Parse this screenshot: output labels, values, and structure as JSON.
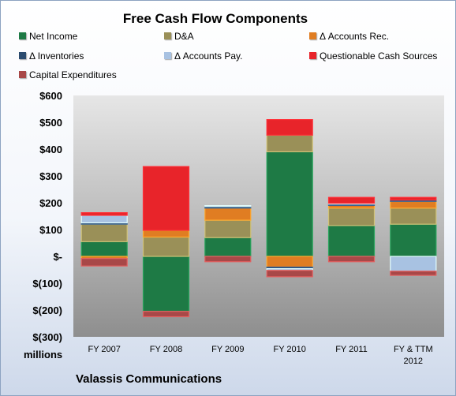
{
  "chart_data": {
    "type": "bar",
    "stacked": true,
    "title": "Free Cash Flow Components",
    "units_label": "millions",
    "company": "Valassis Communications",
    "categories": [
      "FY 2007",
      "FY 2008",
      "FY 2009",
      "FY 2010",
      "FY 2011",
      "FY & TTM|2012"
    ],
    "ylim": [
      -300,
      600
    ],
    "yticks": [
      -300,
      -200,
      -100,
      0,
      100,
      200,
      300,
      400,
      500,
      600
    ],
    "ytick_labels": [
      "$(300)",
      "$(200)",
      "$(100)",
      "$-",
      "$100",
      "$200",
      "$300",
      "$400",
      "$500",
      "$600"
    ],
    "legend_position": "top",
    "grid": false,
    "series": [
      {
        "name": "Net Income",
        "color": "#1e7a45",
        "values": [
          55,
          -205,
          70,
          390,
          115,
          120
        ]
      },
      {
        "name": "D&A",
        "color": "#9a9058",
        "values": [
          65,
          72,
          65,
          62,
          65,
          60
        ]
      },
      {
        "name": "Δ Accounts Rec.",
        "color": "#e07d22",
        "values": [
          -8,
          25,
          45,
          -40,
          10,
          25
        ]
      },
      {
        "name": "Δ Inventories",
        "color": "#2b4b6e",
        "values": [
          5,
          0,
          6,
          -6,
          5,
          5
        ]
      },
      {
        "name": "Δ Accounts Pay.",
        "color": "#a8c2e2",
        "values": [
          28,
          0,
          3,
          -6,
          3,
          -55
        ]
      },
      {
        "name": "Questionable Cash Sources",
        "color": "#e8242a",
        "values": [
          10,
          238,
          0,
          58,
          22,
          10
        ]
      },
      {
        "name": "Capital Expenditures",
        "color": "#a84848",
        "values": [
          -28,
          -20,
          -20,
          -24,
          -20,
          -16
        ]
      }
    ]
  }
}
